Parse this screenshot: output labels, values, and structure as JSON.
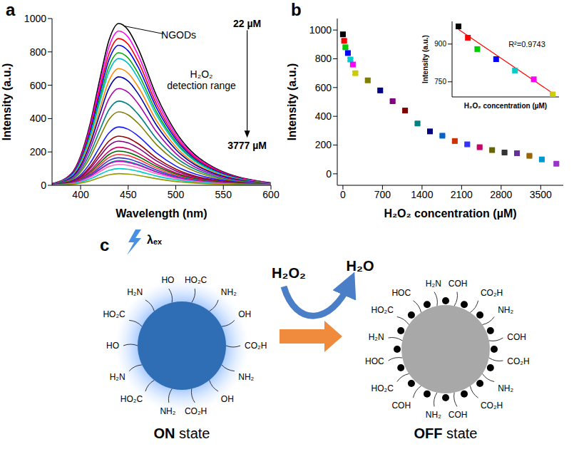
{
  "chart_data": [
    {
      "type": "line",
      "panel_label": "a",
      "xlabel": "Wavelength (nm)",
      "ylabel": "Intensity (a.u.)",
      "xlim": [
        370,
        600
      ],
      "xticks": [
        400,
        450,
        500,
        550,
        600
      ],
      "ylim": [
        0,
        1000
      ],
      "yticks": [
        0,
        200,
        400,
        600,
        800,
        1000
      ],
      "annotations": [
        "NGODs",
        "22 µM",
        "H₂O₂ detection range",
        "3777 µM"
      ],
      "x": [
        370,
        390,
        400,
        410,
        420,
        430,
        440,
        450,
        460,
        480,
        500,
        540,
        600
      ],
      "series": [
        {
          "color": "#000000",
          "values": [
            10,
            68,
            175,
            369,
            631,
            873,
            970,
            931,
            825,
            534,
            320,
            107,
            15
          ]
        },
        {
          "color": "#ff00ff",
          "values": [
            9,
            65,
            167,
            352,
            601,
            833,
            925,
            888,
            786,
            509,
            305,
            102,
            14
          ]
        },
        {
          "color": "#ff0000",
          "values": [
            9,
            62,
            158,
            334,
            572,
            792,
            880,
            845,
            748,
            484,
            290,
            97,
            13
          ]
        },
        {
          "color": "#0000ff",
          "values": [
            8,
            59,
            151,
            319,
            546,
            756,
            840,
            806,
            714,
            462,
            277,
            92,
            13
          ]
        },
        {
          "color": "#00aa00",
          "values": [
            8,
            56,
            143,
            302,
            517,
            716,
            795,
            763,
            676,
            437,
            262,
            87,
            12
          ]
        },
        {
          "color": "#00bcd4",
          "values": [
            8,
            53,
            137,
            289,
            494,
            684,
            760,
            730,
            646,
            418,
            251,
            84,
            11
          ]
        },
        {
          "color": "#ff8800",
          "values": [
            7,
            49,
            126,
            266,
            455,
            630,
            700,
            672,
            595,
            385,
            231,
            77,
            11
          ]
        },
        {
          "color": "#0000aa",
          "values": [
            7,
            46,
            117,
            247,
            423,
            585,
            650,
            624,
            553,
            358,
            215,
            72,
            10
          ]
        },
        {
          "color": "#aa00aa",
          "values": [
            6,
            41,
            104,
            220,
            377,
            522,
            580,
            557,
            493,
            319,
            191,
            64,
            9
          ]
        },
        {
          "color": "#008080",
          "values": [
            5,
            35,
            91,
            192,
            328,
            455,
            505,
            485,
            429,
            278,
            167,
            56,
            8
          ]
        },
        {
          "color": "#808000",
          "values": [
            4,
            31,
            79,
            167,
            286,
            396,
            440,
            422,
            374,
            242,
            145,
            48,
            7
          ]
        },
        {
          "color": "#1a1aff",
          "values": [
            4,
            25,
            63,
            133,
            228,
            315,
            350,
            336,
            298,
            193,
            116,
            39,
            5
          ]
        },
        {
          "color": "#990000",
          "values": [
            3,
            21,
            53,
            112,
            192,
            266,
            295,
            283,
            251,
            162,
            97,
            32,
            4
          ]
        },
        {
          "color": "#800080",
          "values": [
            3,
            19,
            48,
            101,
            172,
            239,
            265,
            254,
            225,
            146,
            87,
            29,
            4
          ]
        },
        {
          "color": "#cc0066",
          "values": [
            2,
            16,
            41,
            87,
            148,
            205,
            228,
            219,
            194,
            125,
            75,
            25,
            3
          ]
        },
        {
          "color": "#006600",
          "values": [
            2,
            14,
            37,
            78,
            133,
            185,
            205,
            197,
            174,
            113,
            68,
            23,
            3
          ]
        },
        {
          "color": "#ff3333",
          "values": [
            2,
            13,
            33,
            70,
            120,
            167,
            185,
            178,
            157,
            102,
            61,
            20,
            3
          ]
        },
        {
          "color": "#3333cc",
          "values": [
            2,
            12,
            30,
            63,
            107,
            149,
            165,
            158,
            140,
            91,
            54,
            18,
            2
          ]
        },
        {
          "color": "#009999",
          "values": [
            1,
            10,
            27,
            56,
            96,
            133,
            148,
            142,
            126,
            81,
            49,
            16,
            2
          ]
        },
        {
          "color": "#cc00cc",
          "values": [
            1,
            10,
            26,
            54,
            93,
            129,
            143,
            137,
            122,
            79,
            47,
            16,
            2
          ]
        },
        {
          "color": "#ff66cc",
          "values": [
            1,
            9,
            23,
            48,
            81,
            113,
            125,
            120,
            106,
            69,
            41,
            14,
            2
          ]
        },
        {
          "color": "#00cccc",
          "values": [
            1,
            7,
            18,
            38,
            65,
            90,
            100,
            96,
            85,
            55,
            33,
            11,
            2
          ]
        },
        {
          "color": "#999900",
          "values": [
            1,
            5,
            13,
            27,
            46,
            63,
            70,
            67,
            60,
            39,
            23,
            8,
            1
          ]
        }
      ]
    },
    {
      "type": "scatter",
      "panel_label": "b",
      "xlabel": "H₂O₂ concentration (µM)",
      "ylabel": "Intensity (a.u.)",
      "xlim": [
        -100,
        3900
      ],
      "xticks": [
        0,
        700,
        1400,
        2100,
        2800,
        3500
      ],
      "ylim": [
        -80,
        1080
      ],
      "yticks": [
        0,
        200,
        400,
        600,
        800,
        1000
      ],
      "marker": "square",
      "x": [
        0,
        22,
        44,
        88,
        132,
        176,
        220,
        440,
        660,
        880,
        1100,
        1320,
        1540,
        1760,
        1980,
        2200,
        2420,
        2640,
        2860,
        3080,
        3300,
        3520,
        3777
      ],
      "values": [
        970,
        925,
        880,
        840,
        795,
        760,
        700,
        650,
        580,
        505,
        440,
        350,
        295,
        265,
        228,
        205,
        185,
        165,
        148,
        143,
        125,
        100,
        70
      ],
      "error": [
        8,
        8,
        8,
        8,
        10,
        12,
        10,
        10,
        8,
        8,
        8,
        8,
        6,
        6,
        8,
        8,
        6,
        6,
        6,
        8,
        6,
        6,
        8
      ],
      "colors": [
        "#000000",
        "#ff0000",
        "#00cc00",
        "#0000ff",
        "#00cccc",
        "#ff00ff",
        "#cccc00",
        "#808000",
        "#000080",
        "#800080",
        "#800000",
        "#008080",
        "#000080",
        "#0066cc",
        "#cc3300",
        "#3333ff",
        "#cc0066",
        "#666600",
        "#333333",
        "#663399",
        "#996600",
        "#0099cc",
        "#9933cc"
      ]
    },
    {
      "type": "scatter",
      "xlabel": "H₂O₂ concentration (µM)",
      "ylabel": "Intensity (a.u.)",
      "xlim": [
        -15,
        235
      ],
      "ylim": [
        690,
        990
      ],
      "yticks": [
        750,
        900
      ],
      "tick_labels": "y",
      "marker": "square",
      "annotations": [
        "R²=0.9743"
      ],
      "x": [
        0,
        22,
        44,
        88,
        132,
        176,
        220
      ],
      "values": [
        970,
        925,
        880,
        840,
        795,
        760,
        700
      ],
      "colors": [
        "#000000",
        "#ff0000",
        "#00cc00",
        "#0000ff",
        "#00cccc",
        "#ff00ff",
        "#cccc00"
      ],
      "fit": {
        "color": "#ff0000",
        "x": [
          0,
          220
        ],
        "values": [
          958,
          705
        ]
      }
    }
  ],
  "diagram": {
    "panel_label": "c",
    "excitation": "λₑₓ",
    "reactant": "H₂O₂",
    "product": "H₂O",
    "on": {
      "label": "ON state",
      "groups": [
        "HO₂C",
        "NH₂",
        "OH",
        "CO₂H",
        "NH₂",
        "OH",
        "CO₂H",
        "NH₂",
        "HO₂C",
        "H₂N",
        "HO",
        "HO₂C",
        "H₂N",
        "HO"
      ]
    },
    "off": {
      "label": "OFF state",
      "groups": [
        "COH",
        "CO₂H",
        "NH₂",
        "COH",
        "CO₂H",
        "NH₂",
        "CO₂H",
        "COH",
        "NH₂",
        "COH",
        "HO₂C",
        "HOC",
        "H₂N",
        "HO₂C",
        "HOC",
        "H₂N"
      ]
    }
  }
}
